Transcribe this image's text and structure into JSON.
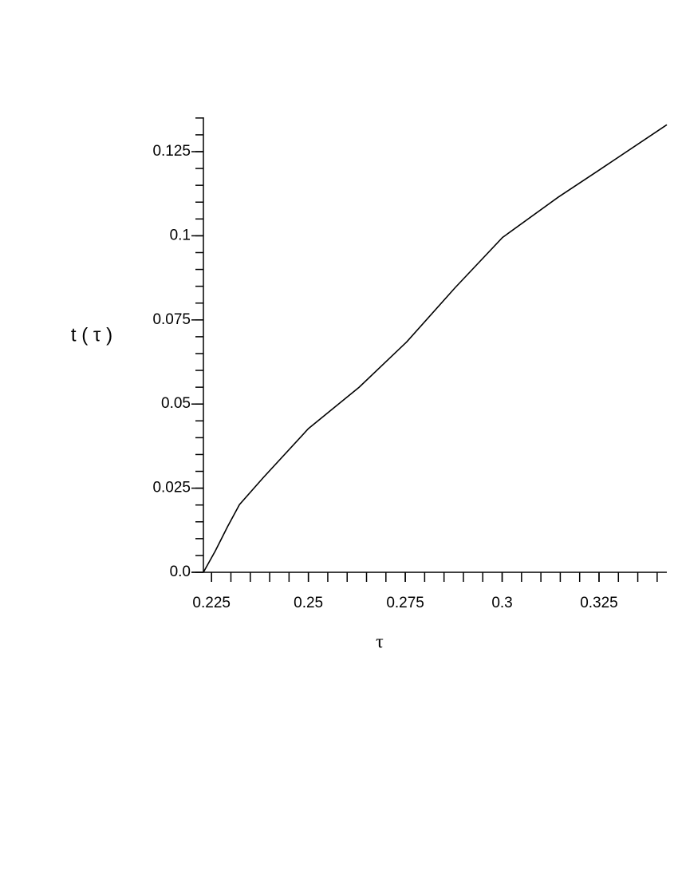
{
  "chart_data": {
    "type": "line",
    "x_label": "τ",
    "y_label": "t  ( τ )",
    "x": [
      0.2229,
      0.226,
      0.2291,
      0.2322,
      0.2384,
      0.25,
      0.2631,
      0.2754,
      0.2878,
      0.3001,
      0.3145,
      0.325,
      0.3425
    ],
    "series": [
      {
        "color": "#000000",
        "values": [
          0,
          0.0064,
          0.0135,
          0.0201,
          0.0282,
          0.0427,
          0.055,
          0.0685,
          0.0845,
          0.0995,
          0.1115,
          0.1195,
          0.133
        ]
      }
    ],
    "xlim": [
      0.2229,
      0.3425
    ],
    "ylim": [
      0,
      0.1352
    ],
    "xticks": [
      0.225,
      0.25,
      0.275,
      0.3,
      0.325
    ],
    "yticks": [
      {
        "value": 0,
        "label": "0.0"
      },
      0.025,
      0.05,
      0.075,
      0.1,
      0.125
    ]
  }
}
